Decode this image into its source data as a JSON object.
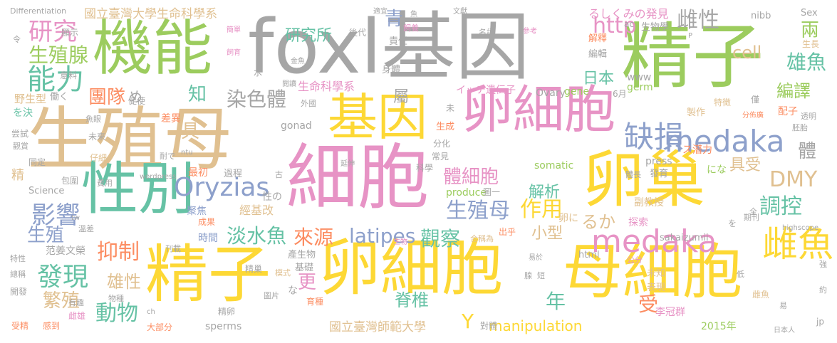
{
  "palette": {
    "green": "#9ccc5e",
    "yellow": "#fdd835",
    "gray": "#a6a6a6",
    "tan": "#e0c090",
    "pink": "#e793c5",
    "teal": "#66c2a5",
    "blue": "#8da0cb",
    "orange": "#fc8d62",
    "olive": "#a6d854",
    "sand": "#e5c494"
  },
  "words": [
    "foxl基因",
    "精子",
    "機能",
    "生殖母",
    "基因",
    "卵細胞",
    "細胞",
    "卵巢",
    "性別",
    "精子",
    "卵細胞",
    "母細胞",
    "medaka",
    "medaka",
    "Oryzias",
    "缺損",
    "雌魚",
    "研究",
    "能力",
    "生殖腺",
    "影響",
    "發現",
    "抑制",
    "動物",
    "繁殖",
    "雄性",
    "latipes",
    "觀察",
    "作用",
    "DMY",
    "調控",
    "雄魚",
    "染色體",
    "淡水魚",
    "生殖母",
    "體細胞",
    "來源",
    "解析",
    "國立臺灣大學生命科學系",
    "國立臺灣師範大學",
    "manipulation",
    "研究所",
    "http",
    "cell",
    "雌性",
    "編譯",
    "青",
    "年",
    "團隊",
    "生命科學系",
    "日本",
    "屬",
    "Y",
    "受",
    "體",
    "具",
    "知",
    "更",
    "生殖",
    "精",
    "經基改",
    "小型",
    "脊椎",
    "具受",
    "るか",
    "兩",
    "るしくみの発見",
    "イッチ遺伝子",
    "Differentiation",
    "sperms",
    "gonad",
    "somatic",
    "produce",
    "www",
    "press",
    "李冠群",
    "2015年",
    "范姜文榮",
    "Science",
    "Ovary",
    "gene",
    "germ",
    "nibb",
    "Sex",
    "sakaizumii",
    "html",
    "highscope",
    "wordpress",
    "ntu",
    "tw",
    "ch",
    "jp",
    "野生型",
    "差異",
    "最初",
    "過程",
    "聚焦",
    "時間",
    "成果",
    "探索",
    "副教授",
    "表現",
    "未知",
    "產生物",
    "基礎",
    "育種",
    "精卵",
    "生物學",
    "特徵",
    "製作",
    "配子",
    "生長",
    "雌魚",
    "對體",
    "圖片",
    "模式",
    "精巢",
    "出乎",
    "合稱為",
    "生成",
    "分化",
    "常見",
    "科學",
    "發育",
    "體長",
    "解釋",
    "編輯",
    "身體",
    "責任",
    "飼養",
    "後代",
    "顯示",
    "促使",
    "尝試",
    "同定",
    "仔細",
    "觀賞",
    "包圍",
    "費用",
    "大部分",
    "感到",
    "有趣",
    "受精",
    "開發",
    "總稱",
    "特性",
    "溫差",
    "刊載",
    "期刊",
    "公分",
    "易於",
    "低",
    "強",
    "約",
    "易",
    "僅",
    "全",
    "短",
    "腺",
    "未",
    "外國",
    "閱讀",
    "金魚",
    "適宜",
    "魚",
    "文獻",
    "名詞",
    "參考",
    "飼育",
    "簡單",
    "意料",
    "水",
    "令",
    "働く",
    "を決",
    "未來",
    "耐で",
    "魚眼",
    "延伸",
    "圖一",
    "古",
    "日本人",
    "透明",
    "胚胎",
    "分佈廣",
    "6月",
    "ac",
    "め",
    "な",
    "卵に",
    "を",
    "ス潜力",
    "にな",
    "生物",
    "性の",
    "物種",
    "雌雄",
    "P"
  ]
}
